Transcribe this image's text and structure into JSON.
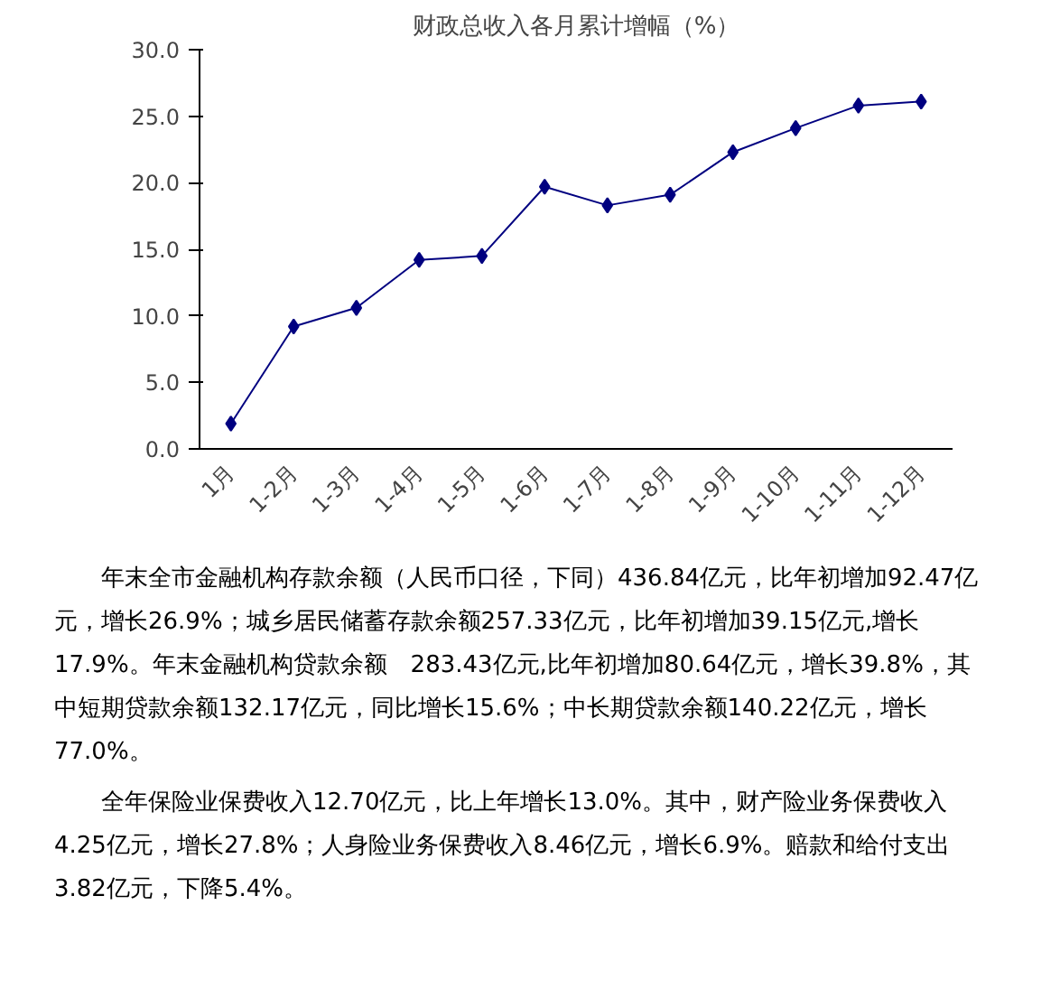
{
  "chart_data": {
    "type": "line",
    "title": "财政总收入各月累计增幅（%）",
    "categories": [
      "1月",
      "1-2月",
      "1-3月",
      "1-4月",
      "1-5月",
      "1-6月",
      "1-7月",
      "1-8月",
      "1-9月",
      "1-10月",
      "1-11月",
      "1-12月"
    ],
    "series": [
      {
        "color": "#000080",
        "values": [
          1.9,
          9.2,
          10.6,
          14.2,
          14.5,
          19.7,
          18.3,
          19.1,
          22.3,
          24.1,
          25.8,
          26.1
        ]
      }
    ],
    "ylim": [
      0,
      30
    ],
    "yticks": [
      {
        "value": 0,
        "label": "0.0"
      },
      {
        "value": 5,
        "label": "5.0"
      },
      {
        "value": 10,
        "label": "10.0"
      },
      {
        "value": 15,
        "label": "15.0"
      },
      {
        "value": 20,
        "label": "20.0"
      },
      {
        "value": 25,
        "label": "25.0"
      },
      {
        "value": 30,
        "label": "30.0"
      }
    ],
    "grid": false,
    "marker": "diamond",
    "line_style": "solid",
    "annotations": [
      "年末全市金融机构存款余额（人民币口径，下同）436.84亿元，比年初增加92.47亿元，增长26.9%；城乡居民储蓄存款余额257.33亿元，比年初增加39.15亿元,增长17.9%。年末金融机构贷款余额　283.43亿元,比年初增加80.64亿元，增长39.8%，其中短期贷款余额132.17亿元，同比增长15.6%；中长期贷款余额140.22亿元，增长77.0%。",
      "全年保险业保费收入12.70亿元，比上年增长13.0%。其中，财产险业务保费收入4.25亿元，增长27.8%；人身险业务保费收入8.46亿元，增长6.9%。赔款和给付支出3.82亿元，下降5.4%。"
    ]
  }
}
